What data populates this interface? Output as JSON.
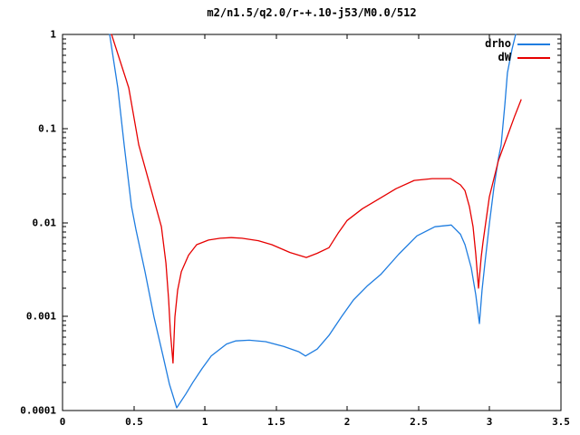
{
  "chart_data": {
    "type": "line",
    "title": "m2/n1.5/q2.0/r-+.10-j53/M0.0/512",
    "xlabel": "",
    "ylabel": "",
    "x_range": [
      0,
      3.5
    ],
    "y_range": [
      0.0001,
      1
    ],
    "y_scale": "log",
    "grid": false,
    "legend_position": "top-right-inside",
    "x_ticks": [
      "0",
      "0.5",
      "1",
      "1.5",
      "2",
      "2.5",
      "3",
      "3.5"
    ],
    "y_ticks": [
      "1",
      "0.1",
      "0.01",
      "0.001",
      "0.0001"
    ],
    "series": [
      {
        "name": "drho",
        "color": "#1f7de0",
        "points": [
          [
            0.331,
            1.0
          ],
          [
            0.388,
            0.27
          ],
          [
            0.433,
            0.067
          ],
          [
            0.484,
            0.0148
          ],
          [
            0.515,
            0.0085
          ],
          [
            0.579,
            0.003
          ],
          [
            0.643,
            0.00098
          ],
          [
            0.706,
            0.00038
          ],
          [
            0.751,
            0.00019
          ],
          [
            0.802,
            0.000107
          ],
          [
            0.866,
            0.00015
          ],
          [
            0.916,
            0.0002
          ],
          [
            0.98,
            0.00028
          ],
          [
            1.044,
            0.00038
          ],
          [
            1.152,
            0.00051
          ],
          [
            1.215,
            0.00055
          ],
          [
            1.311,
            0.00056
          ],
          [
            1.426,
            0.00054
          ],
          [
            1.553,
            0.00048
          ],
          [
            1.661,
            0.00042
          ],
          [
            1.706,
            0.00038
          ],
          [
            1.788,
            0.00045
          ],
          [
            1.871,
            0.00063
          ],
          [
            1.96,
            0.001
          ],
          [
            2.043,
            0.0015
          ],
          [
            2.138,
            0.0021
          ],
          [
            2.234,
            0.0028
          ],
          [
            2.361,
            0.0046
          ],
          [
            2.488,
            0.0072
          ],
          [
            2.615,
            0.009
          ],
          [
            2.73,
            0.0094
          ],
          [
            2.794,
            0.0075
          ],
          [
            2.826,
            0.0058
          ],
          [
            2.87,
            0.0033
          ],
          [
            2.902,
            0.0017
          ],
          [
            2.927,
            0.00084
          ],
          [
            2.946,
            0.0019
          ],
          [
            2.966,
            0.0037
          ],
          [
            2.997,
            0.0097
          ],
          [
            3.029,
            0.0235
          ],
          [
            3.061,
            0.048
          ],
          [
            3.08,
            0.067
          ],
          [
            3.106,
            0.18
          ],
          [
            3.124,
            0.39
          ],
          [
            3.156,
            0.69
          ],
          [
            3.182,
            1.0
          ]
        ]
      },
      {
        "name": "dW",
        "color": "#e60000",
        "points": [
          [
            0.344,
            1.0
          ],
          [
            0.465,
            0.27
          ],
          [
            0.535,
            0.067
          ],
          [
            0.655,
            0.0148
          ],
          [
            0.694,
            0.009
          ],
          [
            0.726,
            0.0037
          ],
          [
            0.745,
            0.0015
          ],
          [
            0.757,
            0.00069
          ],
          [
            0.776,
            0.00032
          ],
          [
            0.789,
            0.00099
          ],
          [
            0.808,
            0.0019
          ],
          [
            0.834,
            0.003
          ],
          [
            0.885,
            0.0045
          ],
          [
            0.942,
            0.0058
          ],
          [
            1.025,
            0.0065
          ],
          [
            1.107,
            0.0068
          ],
          [
            1.184,
            0.0069
          ],
          [
            1.26,
            0.0068
          ],
          [
            1.375,
            0.0064
          ],
          [
            1.47,
            0.0058
          ],
          [
            1.597,
            0.0048
          ],
          [
            1.712,
            0.00425
          ],
          [
            1.788,
            0.0047
          ],
          [
            1.871,
            0.0054
          ],
          [
            1.935,
            0.0077
          ],
          [
            1.998,
            0.0105
          ],
          [
            2.106,
            0.014
          ],
          [
            2.234,
            0.0183
          ],
          [
            2.342,
            0.0229
          ],
          [
            2.469,
            0.028
          ],
          [
            2.596,
            0.0293
          ],
          [
            2.724,
            0.0293
          ],
          [
            2.794,
            0.0251
          ],
          [
            2.826,
            0.0218
          ],
          [
            2.857,
            0.0147
          ],
          [
            2.883,
            0.009
          ],
          [
            2.902,
            0.0046
          ],
          [
            2.921,
            0.002
          ],
          [
            2.94,
            0.0043
          ],
          [
            2.953,
            0.0062
          ],
          [
            2.997,
            0.0188
          ],
          [
            3.061,
            0.0456
          ],
          [
            3.124,
            0.083
          ],
          [
            3.175,
            0.135
          ],
          [
            3.22,
            0.202
          ]
        ]
      }
    ]
  },
  "colors": {
    "background": "#ffffff",
    "axis": "#000000",
    "text": "#000000"
  }
}
